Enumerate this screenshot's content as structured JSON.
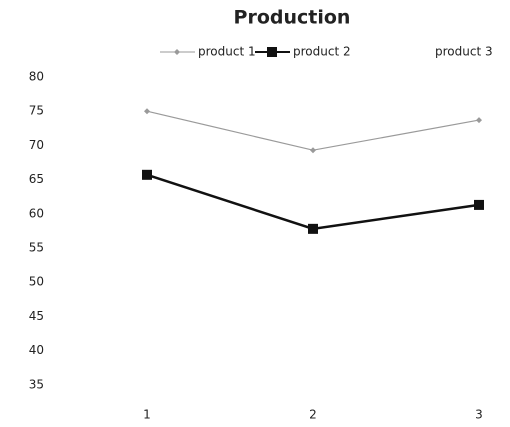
{
  "chart_data": {
    "type": "line",
    "title": "Production",
    "categories": [
      "1",
      "2",
      "3"
    ],
    "series": [
      {
        "name": "product 1",
        "color": "#9a9a9a",
        "marker": "diamond",
        "values": [
          75,
          69.3,
          73.7
        ]
      },
      {
        "name": "product 2",
        "color": "#111111",
        "marker": "square",
        "values": [
          65.7,
          57.8,
          61.3
        ]
      },
      {
        "name": "product 3",
        "values": [
          null,
          null,
          null
        ]
      }
    ],
    "ylim": [
      30,
      80
    ],
    "yticks": [
      35,
      40,
      45,
      50,
      55,
      60,
      65,
      70,
      75,
      80
    ],
    "grid": false,
    "legend": "top"
  }
}
